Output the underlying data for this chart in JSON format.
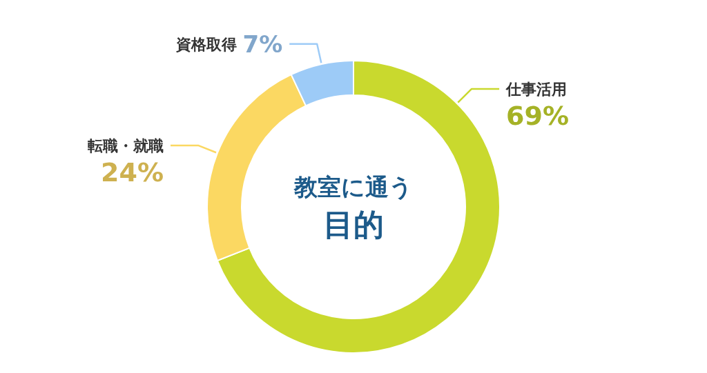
{
  "chart_data": {
    "type": "donut",
    "title": "教室に通う",
    "subtitle": "目的",
    "value_labels": [
      "69%",
      "24%",
      "7%"
    ],
    "categories": [
      "仕事活用",
      "転職・就職",
      "資格取得"
    ],
    "values": [
      69,
      24,
      7
    ],
    "colors": [
      "#c9d92e",
      "#fbd862",
      "#9dcbf7"
    ]
  }
}
